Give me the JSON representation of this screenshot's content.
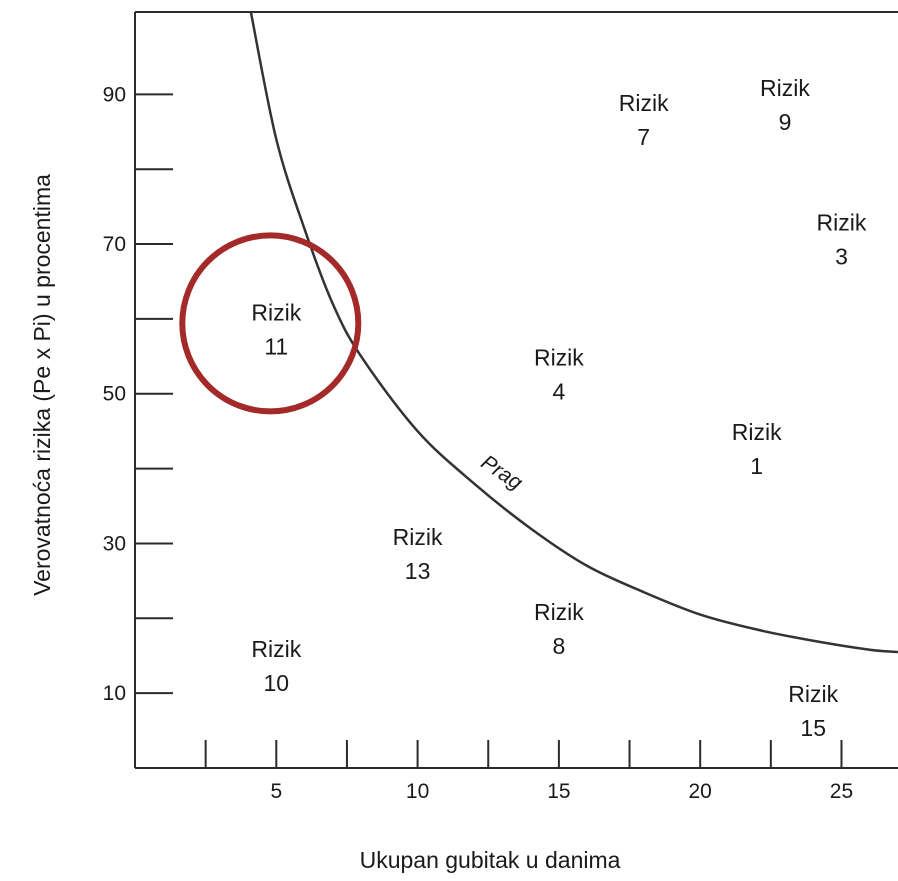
{
  "chart_data": {
    "type": "scatter",
    "xlabel": "Ukupan gubitak u danima",
    "ylabel": "Verovatnoća rizika (Pe x Pi) u procentima",
    "xlim": [
      0,
      27
    ],
    "ylim": [
      0,
      101
    ],
    "x_ticks": [
      5,
      10,
      15,
      20,
      25
    ],
    "x_minor_ticks": [
      2.5,
      5,
      7.5,
      10,
      12.5,
      15,
      17.5,
      20,
      22.5,
      25
    ],
    "y_ticks": [
      10,
      30,
      50,
      70,
      90
    ],
    "y_minor_ticks": [
      20,
      40,
      60,
      80
    ],
    "grid": false,
    "points": [
      {
        "label": "Rizik",
        "id": "11",
        "x": 5,
        "y": 59
      },
      {
        "label": "Rizik",
        "id": "7",
        "x": 18,
        "y": 87
      },
      {
        "label": "Rizik",
        "id": "9",
        "x": 23,
        "y": 89
      },
      {
        "label": "Rizik",
        "id": "3",
        "x": 25,
        "y": 71
      },
      {
        "label": "Rizik",
        "id": "4",
        "x": 15,
        "y": 53
      },
      {
        "label": "Rizik",
        "id": "1",
        "x": 22,
        "y": 43
      },
      {
        "label": "Rizik",
        "id": "13",
        "x": 10,
        "y": 29
      },
      {
        "label": "Rizik",
        "id": "8",
        "x": 15,
        "y": 19
      },
      {
        "label": "Rizik",
        "id": "10",
        "x": 5,
        "y": 14
      },
      {
        "label": "Rizik",
        "id": "15",
        "x": 24,
        "y": 8
      }
    ],
    "threshold_curve": {
      "label": "Prag",
      "points": [
        [
          4.1,
          101
        ],
        [
          5,
          84
        ],
        [
          6,
          72
        ],
        [
          7,
          62
        ],
        [
          8,
          55
        ],
        [
          10,
          45
        ],
        [
          12,
          38
        ],
        [
          14,
          32
        ],
        [
          16,
          27
        ],
        [
          18,
          23.5
        ],
        [
          20,
          20.5
        ],
        [
          22,
          18.5
        ],
        [
          24,
          17
        ],
        [
          26,
          15.8
        ],
        [
          27,
          15.5
        ]
      ]
    },
    "highlight": {
      "target": "11",
      "shape": "circle",
      "color": "#a42a2a"
    }
  }
}
